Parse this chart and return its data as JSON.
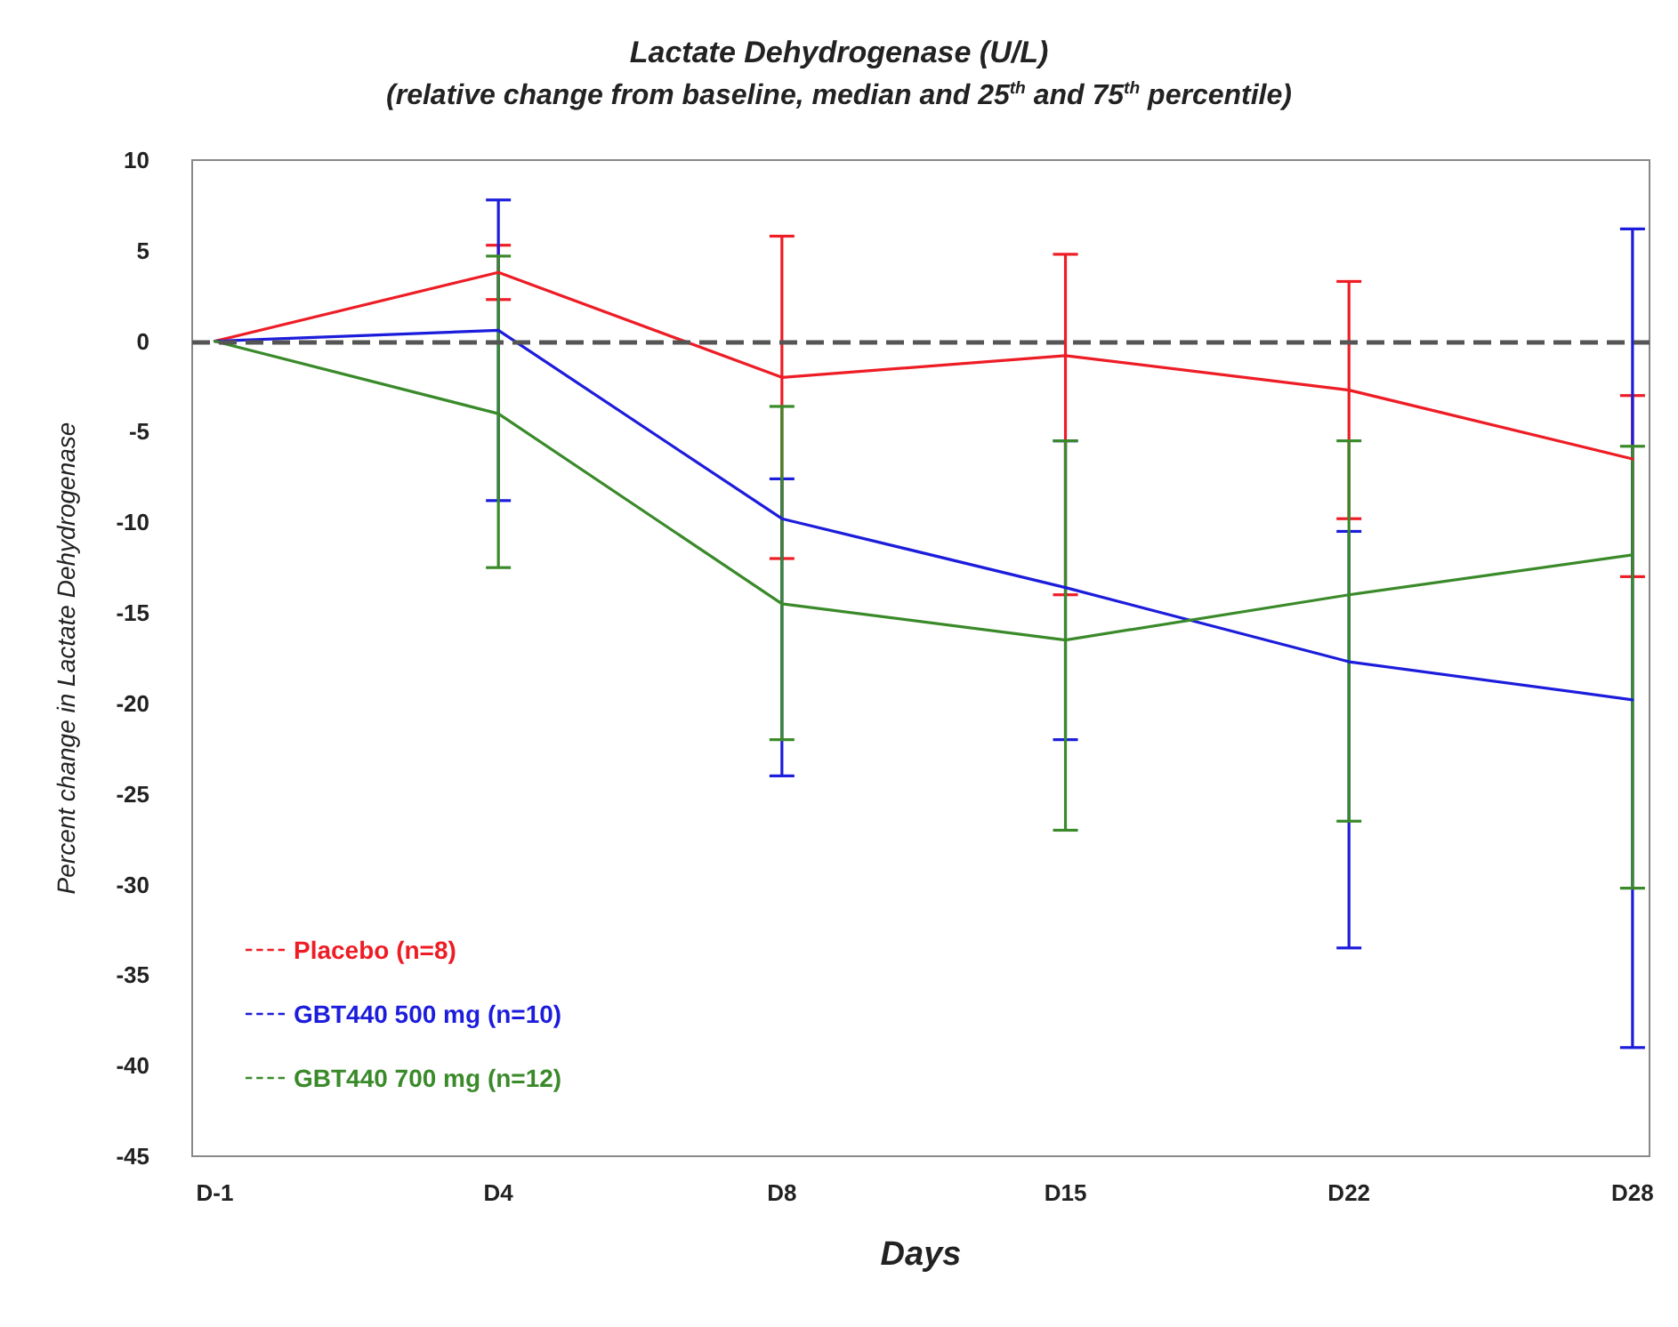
{
  "chart_data": {
    "type": "line",
    "title": "Lactate Dehydrogenase (U/L)",
    "subtitle": "(relative change from baseline, median and 25$^{th}$ and 75$^{th}$ percentile)",
    "xlabel": "Days",
    "ylabel": "Percent change in Lactate Dehydrogenase",
    "categories": [
      "D-1",
      "D4",
      "D8",
      "D15",
      "D22",
      "D28"
    ],
    "series": [
      {
        "name": "Placebo (n=8)",
        "color": "#ee1c25",
        "values": [
          0,
          3.8,
          -2,
          -0.8,
          -2.7,
          -6.5
        ],
        "errors": [
          null,
          [
            2.3,
            5.3
          ],
          [
            -12,
            5.8
          ],
          [
            -14,
            4.8
          ],
          [
            -9.8,
            3.3
          ],
          [
            -13,
            -3
          ]
        ]
      },
      {
        "name": "GBT440 500 mg (n=10)",
        "color": "#1c1cdc",
        "values": [
          0,
          0.6,
          -9.8,
          -13.6,
          -17.7,
          -19.8
        ],
        "errors": [
          null,
          [
            -8.8,
            7.8
          ],
          [
            -24,
            -7.6
          ],
          [
            -22,
            -5.5
          ],
          [
            -33.5,
            -10.5
          ],
          [
            -39,
            6.2
          ]
        ]
      },
      {
        "name": "GBT440 700 mg (n=12)",
        "color": "#3a8a2a",
        "values": [
          0,
          -4,
          -14.5,
          -16.5,
          -14,
          -11.8
        ],
        "errors": [
          null,
          [
            -12.5,
            4.7
          ],
          [
            -22,
            -3.6
          ],
          [
            -27,
            -5.5
          ],
          [
            -26.5,
            -5.5
          ],
          [
            -30.2,
            -5.8
          ]
        ]
      }
    ],
    "ylim": [
      -45,
      10
    ],
    "yticks": [
      -45,
      -40,
      -35,
      -30,
      -25,
      -20,
      -15,
      -10,
      -5,
      0,
      5,
      10
    ],
    "ref_lines": [
      {
        "axis": "y",
        "value": 0,
        "color": "#555555",
        "line_style": "dashed"
      }
    ],
    "legend": "bottom left",
    "grid": false,
    "marker": "none",
    "line_style": "solid"
  }
}
